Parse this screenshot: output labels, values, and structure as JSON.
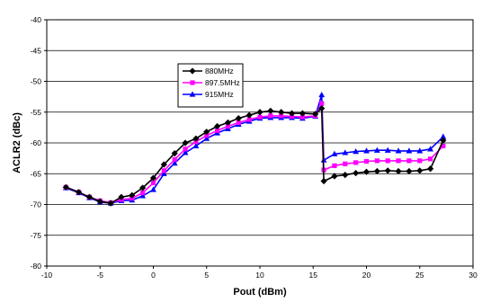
{
  "chart_data": {
    "type": "line",
    "title": "",
    "xlabel": "Pout (dBm)",
    "ylabel": "ACLR2 (dBc)",
    "xlim": [
      -10,
      30
    ],
    "ylim": [
      -80,
      -40
    ],
    "xticks": [
      -10,
      -5,
      0,
      5,
      10,
      15,
      20,
      25,
      30
    ],
    "yticks": [
      -40,
      -45,
      -50,
      -55,
      -60,
      -65,
      -70,
      -75,
      -80
    ],
    "grid": "horizontal",
    "legend_position": "upper-left-center",
    "series": [
      {
        "name": "880MHz",
        "color": "#000000",
        "marker": "diamond",
        "x": [
          -8.2,
          -7,
          -6,
          -5,
          -4,
          -3,
          -2,
          -1,
          0,
          1,
          2,
          3,
          4,
          5,
          6,
          7,
          8,
          9,
          10,
          11,
          12,
          13,
          14,
          15.2,
          15.8,
          16,
          17,
          18,
          19,
          20,
          21,
          22,
          23,
          24,
          25,
          26,
          27.2
        ],
        "y": [
          -67.2,
          -68,
          -68.8,
          -69.5,
          -69.8,
          -68.8,
          -68.5,
          -67.3,
          -65.7,
          -63.5,
          -61.7,
          -60,
          -59.3,
          -58.2,
          -57.3,
          -56.7,
          -56,
          -55.5,
          -55,
          -54.8,
          -55,
          -55.2,
          -55.2,
          -55.3,
          -54.4,
          -66.2,
          -65.4,
          -65.2,
          -64.9,
          -64.7,
          -64.6,
          -64.5,
          -64.6,
          -64.6,
          -64.5,
          -64.2,
          -59.6
        ]
      },
      {
        "name": "897.5MHz",
        "color": "#ff00ff",
        "marker": "square",
        "x": [
          -8.2,
          -7,
          -6,
          -5,
          -4,
          -3,
          -2,
          -1,
          0,
          1,
          2,
          3,
          4,
          5,
          6,
          7,
          8,
          9,
          10,
          11,
          12,
          13,
          14,
          15.2,
          15.8,
          16,
          17,
          18,
          19,
          20,
          21,
          22,
          23,
          24,
          25,
          26,
          27.2
        ],
        "y": [
          -67.2,
          -68,
          -68.8,
          -69.4,
          -69.7,
          -69.2,
          -69,
          -68.1,
          -66.5,
          -64.5,
          -62.7,
          -61,
          -59.8,
          -58.8,
          -58,
          -57.3,
          -56.7,
          -56.2,
          -55.8,
          -55.6,
          -55.6,
          -55.7,
          -55.8,
          -55.6,
          -53.6,
          -64.4,
          -63.7,
          -63.4,
          -63.2,
          -63,
          -62.9,
          -62.9,
          -62.9,
          -62.9,
          -62.9,
          -62.6,
          -60.5
        ]
      },
      {
        "name": "915MHz",
        "color": "#0000ff",
        "marker": "triangle",
        "x": [
          -8.2,
          -7,
          -6,
          -5,
          -4,
          -3,
          -2,
          -1,
          0,
          1,
          2,
          3,
          4,
          5,
          6,
          7,
          8,
          9,
          10,
          11,
          12,
          13,
          14,
          15.2,
          15.8,
          16,
          17,
          18,
          19,
          20,
          21,
          22,
          23,
          24,
          25,
          26,
          27.2
        ],
        "y": [
          -67.3,
          -68.1,
          -68.9,
          -69.6,
          -69.8,
          -69.4,
          -69.3,
          -68.6,
          -67.6,
          -65,
          -63.3,
          -61.6,
          -60.5,
          -59.3,
          -58.4,
          -57.7,
          -57,
          -56.5,
          -56,
          -55.9,
          -55.9,
          -55.9,
          -56,
          -55.7,
          -52.2,
          -62.8,
          -61.8,
          -61.6,
          -61.4,
          -61.3,
          -61.2,
          -61.2,
          -61.3,
          -61.3,
          -61.3,
          -61,
          -59
        ]
      }
    ]
  }
}
